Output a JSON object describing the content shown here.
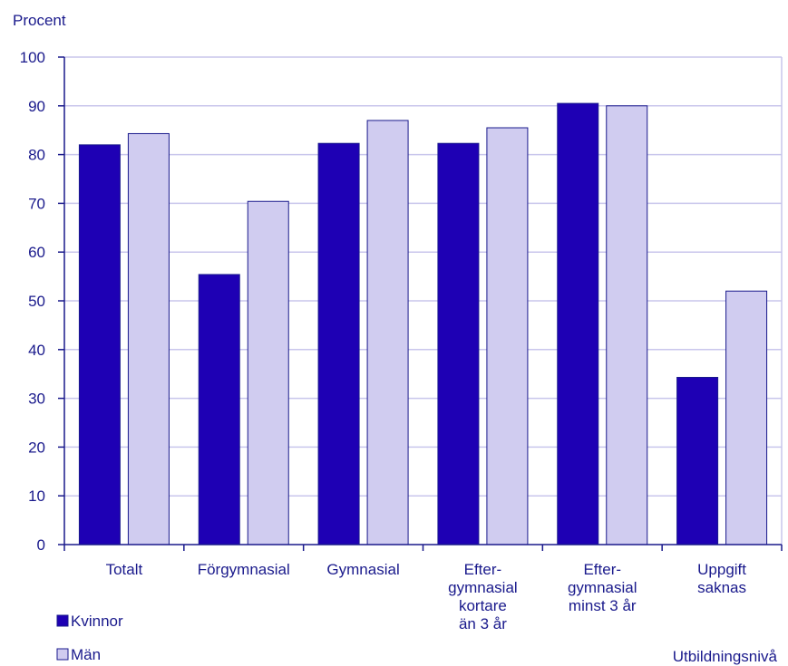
{
  "chart_data": {
    "type": "bar",
    "ylabel": "Procent",
    "xlabel": "Utbildningsnivå",
    "ylim": [
      0,
      100
    ],
    "yticks": [
      0,
      10,
      20,
      30,
      40,
      50,
      60,
      70,
      80,
      90,
      100
    ],
    "grid": true,
    "legend_position": "bottom-left",
    "categories": [
      [
        "Totalt"
      ],
      [
        "Förgymnasial"
      ],
      [
        "Gymnasial"
      ],
      [
        "Efter-",
        "gymnasial",
        "kortare",
        "än 3 år"
      ],
      [
        "Efter-",
        "gymnasial",
        "minst 3 år"
      ],
      [
        "Uppgift",
        "saknas"
      ]
    ],
    "series": [
      {
        "name": "Kvinnor",
        "color": "#1e00b4",
        "values": [
          82,
          55.4,
          82.3,
          82.3,
          90.5,
          34.3
        ]
      },
      {
        "name": "Män",
        "color": "#d0ccf0",
        "values": [
          84.3,
          70.4,
          87,
          85.5,
          90,
          52
        ]
      }
    ],
    "colors": {
      "text": "#1a1a8c",
      "axis": "#1a1a8c",
      "grid": "#c9c6ec",
      "bar_stroke": "#1a1a8c"
    }
  }
}
